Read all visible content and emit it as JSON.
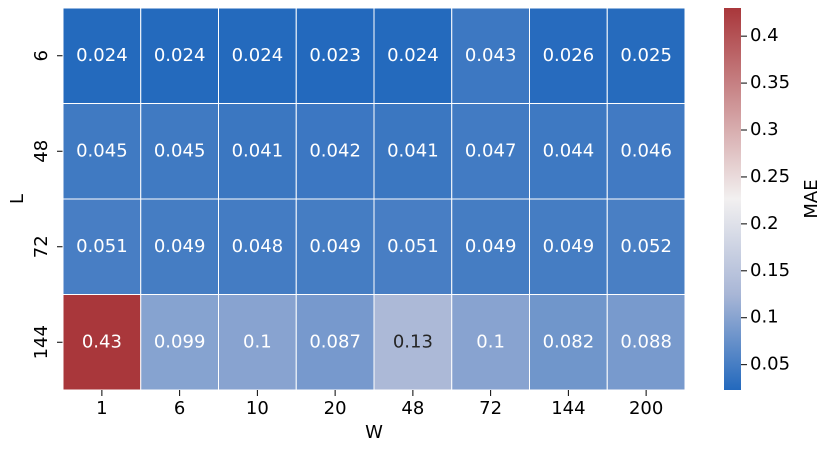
{
  "chart_data": {
    "type": "heatmap",
    "x_label": "W",
    "y_label": "L",
    "x": [
      "1",
      "6",
      "10",
      "20",
      "48",
      "72",
      "144",
      "200"
    ],
    "y": [
      "6",
      "48",
      "72",
      "144"
    ],
    "values": [
      [
        0.024,
        0.024,
        0.024,
        0.023,
        0.024,
        0.043,
        0.026,
        0.025
      ],
      [
        0.045,
        0.045,
        0.041,
        0.042,
        0.041,
        0.047,
        0.044,
        0.046
      ],
      [
        0.051,
        0.049,
        0.048,
        0.049,
        0.051,
        0.049,
        0.049,
        0.052
      ],
      [
        0.43,
        0.099,
        0.1,
        0.087,
        0.13,
        0.1,
        0.082,
        0.088
      ]
    ],
    "colorbar_label": "MAE",
    "clim": [
      0.023,
      0.43
    ],
    "cticks": [
      0.05,
      0.1,
      0.15,
      0.2,
      0.25,
      0.3,
      0.35,
      0.4
    ],
    "colormap": [
      [
        0,
        "#2369bd"
      ],
      [
        0.25,
        "#a8b6d6"
      ],
      [
        0.5,
        "#f2f0f0"
      ],
      [
        1,
        "#a9373b"
      ]
    ]
  }
}
